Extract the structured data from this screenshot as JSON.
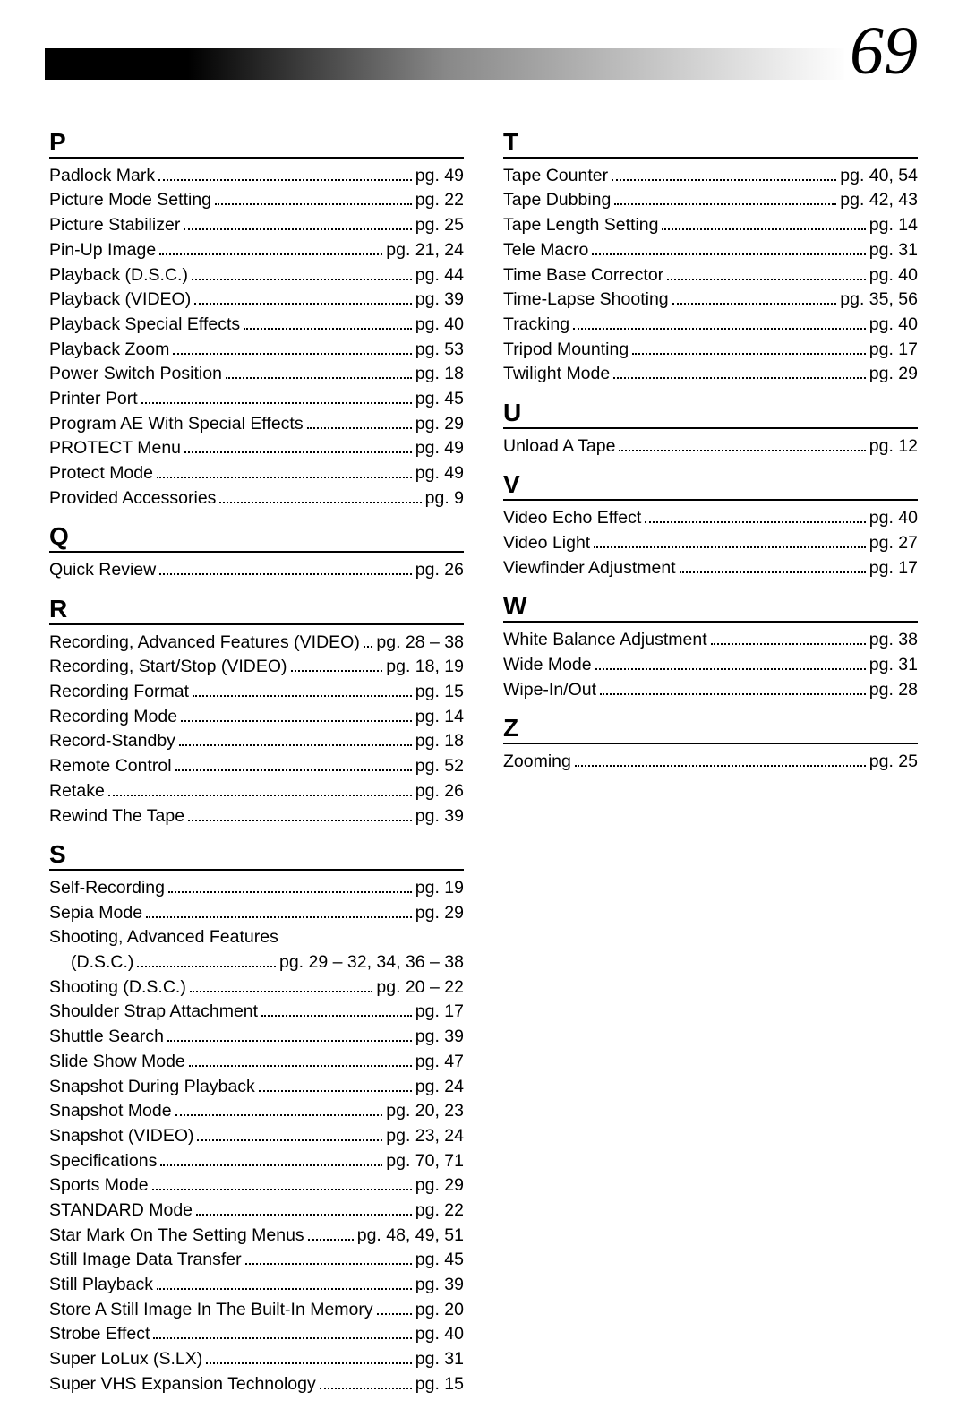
{
  "pageNumber": "69",
  "left": [
    {
      "type": "letter",
      "text": "P"
    },
    {
      "type": "entry",
      "label": "Padlock Mark",
      "page": "pg. 49"
    },
    {
      "type": "entry",
      "label": "Picture Mode Setting",
      "page": "pg. 22"
    },
    {
      "type": "entry",
      "label": "Picture Stabilizer",
      "page": "pg. 25"
    },
    {
      "type": "entry",
      "label": "Pin-Up Image",
      "page": "pg. 21, 24"
    },
    {
      "type": "entry",
      "label": "Playback (D.S.C.)",
      "page": "pg. 44"
    },
    {
      "type": "entry",
      "label": "Playback (VIDEO)",
      "page": "pg. 39"
    },
    {
      "type": "entry",
      "label": "Playback Special Effects",
      "page": "pg. 40"
    },
    {
      "type": "entry",
      "label": "Playback Zoom",
      "page": "pg. 53"
    },
    {
      "type": "entry",
      "label": "Power Switch Position",
      "page": "pg. 18"
    },
    {
      "type": "entry",
      "label": "Printer Port",
      "page": "pg. 45"
    },
    {
      "type": "entry",
      "label": "Program AE With Special Effects",
      "page": "pg. 29"
    },
    {
      "type": "entry",
      "label": "PROTECT Menu",
      "page": "pg. 49"
    },
    {
      "type": "entry",
      "label": "Protect Mode",
      "page": "pg. 49"
    },
    {
      "type": "entry",
      "label": "Provided Accessories",
      "page": "pg. 9"
    },
    {
      "type": "letter",
      "text": "Q"
    },
    {
      "type": "entry",
      "label": "Quick Review",
      "page": "pg. 26"
    },
    {
      "type": "letter",
      "text": "R"
    },
    {
      "type": "entry",
      "label": "Recording, Advanced Features (VIDEO)",
      "page": "pg. 28 – 38"
    },
    {
      "type": "entry",
      "label": "Recording, Start/Stop (VIDEO)",
      "page": "pg. 18, 19"
    },
    {
      "type": "entry",
      "label": "Recording Format",
      "page": "pg. 15"
    },
    {
      "type": "entry",
      "label": "Recording Mode",
      "page": "pg. 14"
    },
    {
      "type": "entry",
      "label": "Record-Standby",
      "page": "pg. 18"
    },
    {
      "type": "entry",
      "label": "Remote Control",
      "page": "pg. 52"
    },
    {
      "type": "entry",
      "label": "Retake",
      "page": "pg. 26"
    },
    {
      "type": "entry",
      "label": "Rewind The Tape",
      "page": "pg. 39"
    },
    {
      "type": "letter",
      "text": "S"
    },
    {
      "type": "entry",
      "label": "Self-Recording",
      "page": "pg. 19"
    },
    {
      "type": "entry",
      "label": "Sepia Mode",
      "page": "pg. 29"
    },
    {
      "type": "plain",
      "label": "Shooting, Advanced Features"
    },
    {
      "type": "entry",
      "cont": true,
      "label": "(D.S.C.)",
      "page": "pg. 29 – 32, 34, 36 – 38"
    },
    {
      "type": "entry",
      "label": "Shooting (D.S.C.)",
      "page": "pg. 20 – 22"
    },
    {
      "type": "entry",
      "label": "Shoulder Strap Attachment",
      "page": "pg. 17"
    },
    {
      "type": "entry",
      "label": "Shuttle Search",
      "page": "pg. 39"
    },
    {
      "type": "entry",
      "label": "Slide Show Mode",
      "page": "pg. 47"
    },
    {
      "type": "entry",
      "label": "Snapshot During Playback",
      "page": "pg. 24"
    },
    {
      "type": "entry",
      "label": "Snapshot Mode",
      "page": "pg. 20, 23"
    },
    {
      "type": "entry",
      "label": "Snapshot (VIDEO)",
      "page": "pg. 23, 24"
    },
    {
      "type": "entry",
      "label": "Specifications",
      "page": "pg. 70, 71"
    },
    {
      "type": "entry",
      "label": "Sports Mode",
      "page": "pg. 29"
    },
    {
      "type": "entry",
      "label": "STANDARD Mode",
      "page": "pg. 22"
    },
    {
      "type": "entry",
      "label": "Star Mark On The Setting Menus",
      "page": "pg. 48, 49, 51"
    },
    {
      "type": "entry",
      "label": "Still Image Data Transfer",
      "page": "pg. 45"
    },
    {
      "type": "entry",
      "label": "Still Playback",
      "page": "pg. 39"
    },
    {
      "type": "entry",
      "label": "Store A Still Image In The Built-In Memory",
      "page": "pg. 20"
    },
    {
      "type": "entry",
      "label": "Strobe Effect",
      "page": "pg. 40"
    },
    {
      "type": "entry",
      "label": "Super LoLux (S.LX)",
      "page": "pg. 31"
    },
    {
      "type": "entry",
      "label": "Super VHS Expansion Technology",
      "page": "pg. 15"
    }
  ],
  "right": [
    {
      "type": "letter",
      "text": "T"
    },
    {
      "type": "entry",
      "label": "Tape Counter",
      "page": "pg. 40, 54"
    },
    {
      "type": "entry",
      "label": "Tape Dubbing",
      "page": "pg. 42, 43"
    },
    {
      "type": "entry",
      "label": "Tape Length Setting",
      "page": "pg. 14"
    },
    {
      "type": "entry",
      "label": "Tele Macro",
      "page": "pg. 31"
    },
    {
      "type": "entry",
      "label": "Time Base Corrector",
      "page": "pg. 40"
    },
    {
      "type": "entry",
      "label": "Time-Lapse Shooting",
      "page": "pg. 35, 56"
    },
    {
      "type": "entry",
      "label": "Tracking",
      "page": "pg. 40"
    },
    {
      "type": "entry",
      "label": "Tripod Mounting",
      "page": "pg. 17"
    },
    {
      "type": "entry",
      "label": "Twilight Mode",
      "page": "pg. 29"
    },
    {
      "type": "letter",
      "text": "U"
    },
    {
      "type": "entry",
      "label": "Unload A Tape",
      "page": "pg. 12"
    },
    {
      "type": "letter",
      "text": "V"
    },
    {
      "type": "entry",
      "label": "Video Echo Effect",
      "page": "pg. 40"
    },
    {
      "type": "entry",
      "label": "Video Light",
      "page": "pg. 27"
    },
    {
      "type": "entry",
      "label": "Viewfinder Adjustment",
      "page": "pg. 17"
    },
    {
      "type": "letter",
      "text": "W"
    },
    {
      "type": "entry",
      "label": "White Balance Adjustment",
      "page": "pg. 38"
    },
    {
      "type": "entry",
      "label": "Wide Mode",
      "page": "pg. 31"
    },
    {
      "type": "entry",
      "label": "Wipe-In/Out",
      "page": "pg. 28"
    },
    {
      "type": "letter",
      "text": "Z"
    },
    {
      "type": "entry",
      "label": "Zooming",
      "page": "pg. 25"
    }
  ]
}
